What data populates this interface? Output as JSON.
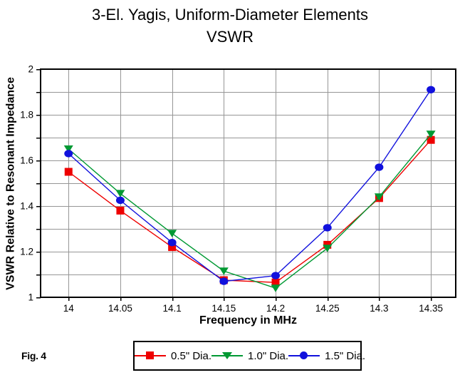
{
  "title": {
    "line1": "3-El. Yagis, Uniform-Diameter Elements",
    "line2": "VSWR"
  },
  "figure_label": "Fig. 4",
  "colors": {
    "background": "#FFFFFF",
    "axis_frame": "#000000",
    "grid": "#969696",
    "series_red": "#EE0000",
    "series_green": "#009933",
    "series_blue": "#1111DD"
  },
  "chart_data": {
    "type": "line",
    "title": "3-El. Yagis, Uniform-Diameter Elements VSWR",
    "xlabel": "Frequency in MHz",
    "ylabel": "VSWR Relative to Resonant Impedance",
    "x": [
      14,
      14.05,
      14.1,
      14.15,
      14.2,
      14.25,
      14.3,
      14.35
    ],
    "x_tick_labels": [
      "14",
      "14.05",
      "14.1",
      "14.15",
      "14.2",
      "14.25",
      "14.3",
      "14.35"
    ],
    "xlim": [
      13.973,
      14.374
    ],
    "ylim": [
      1,
      2
    ],
    "grid": true,
    "y_grid_step": 0.1,
    "y_major_tick_values": [
      2,
      1.8,
      1.6,
      1.4,
      1.2,
      1
    ],
    "y_major_tick_labels": [
      "2",
      "1.8",
      "1.6",
      "1.4",
      "1.2",
      "1"
    ],
    "legend_position": "bottom",
    "series": [
      {
        "name": "0.5\" Dia.",
        "marker": "square",
        "color": "#EE0000",
        "values": [
          1.55,
          1.38,
          1.22,
          1.075,
          1.065,
          1.23,
          1.435,
          1.69
        ]
      },
      {
        "name": "1.0\" Dia.",
        "marker": "triangle-down",
        "color": "#009933",
        "values": [
          1.65,
          1.455,
          1.28,
          1.115,
          1.04,
          1.215,
          1.44,
          1.715
        ]
      },
      {
        "name": "1.5\" Dia.",
        "marker": "circle",
        "color": "#1111DD",
        "values": [
          1.63,
          1.425,
          1.24,
          1.07,
          1.095,
          1.305,
          1.57,
          1.91
        ]
      }
    ]
  }
}
